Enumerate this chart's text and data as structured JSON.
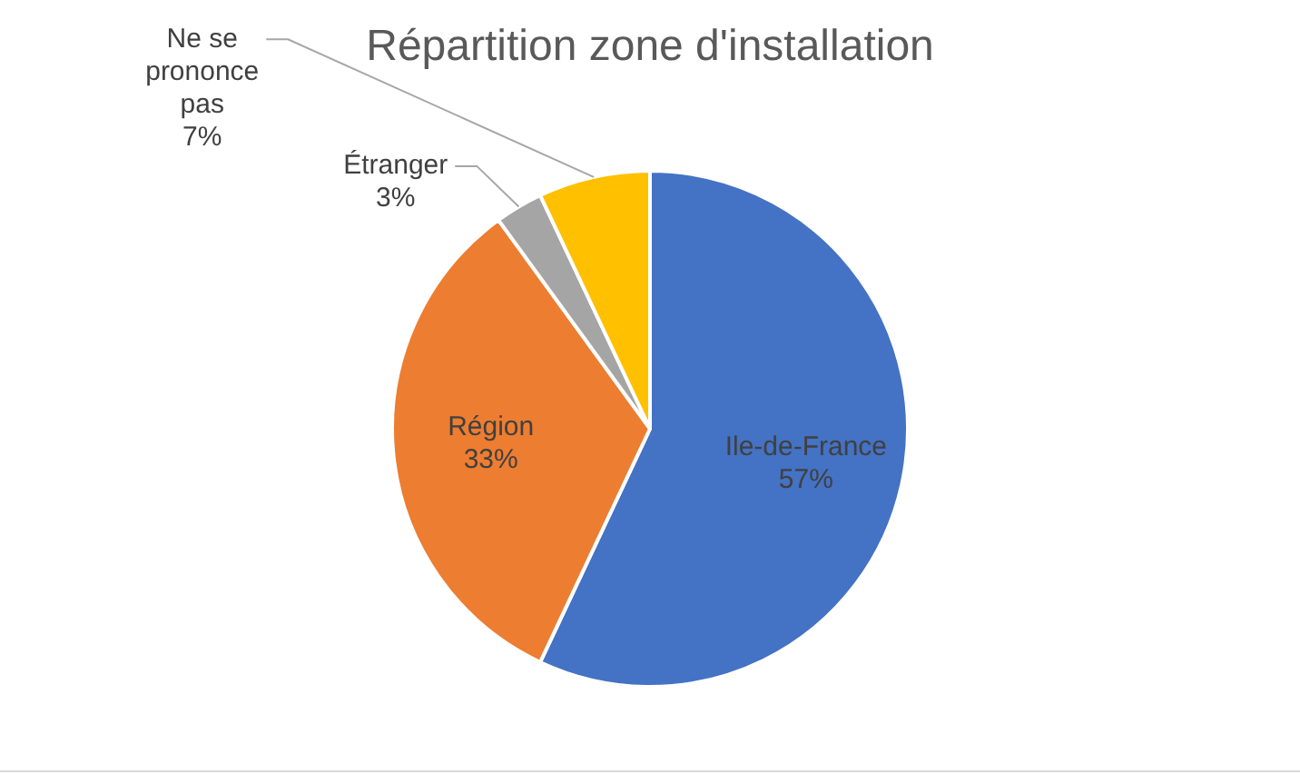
{
  "chart_data": {
    "type": "pie",
    "title": "Répartition zone d'installation",
    "categories": [
      "Ile-de-France",
      "Région",
      "Étranger",
      "Ne se prononce pas"
    ],
    "values": [
      57,
      33,
      3,
      7
    ],
    "colors": [
      "#4472c4",
      "#ed7d31",
      "#a5a5a5",
      "#ffc000"
    ],
    "value_labels": [
      "57%",
      "33%",
      "3%",
      "7%"
    ],
    "legend": false
  }
}
